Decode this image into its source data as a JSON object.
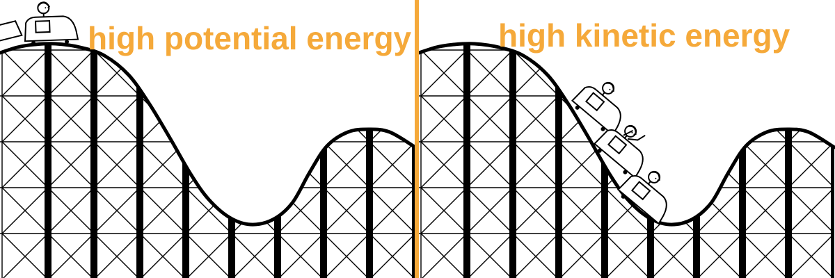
{
  "panels": [
    {
      "label": "high potential energy",
      "riders": 1
    },
    {
      "label": "high kinetic energy",
      "riders": 3
    }
  ],
  "colors": {
    "accent": "#f5a93a",
    "ink": "#000000",
    "background": "#ffffff"
  }
}
